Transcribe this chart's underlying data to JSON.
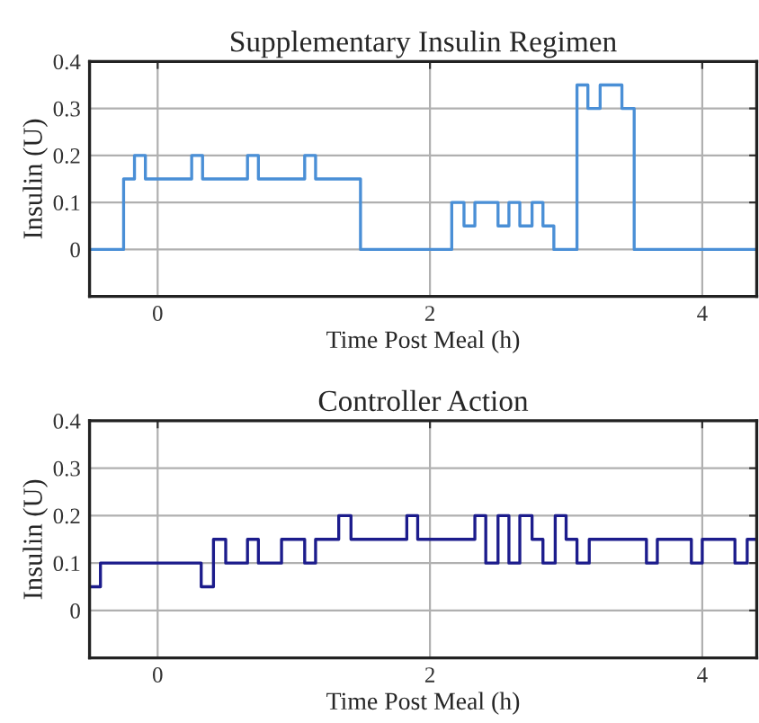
{
  "chart_data": [
    {
      "type": "step",
      "title": "Supplementary Insulin Regimen",
      "xlabel": "Time Post Meal (h)",
      "ylabel": "Insulin (U)",
      "x": [
        -0.5,
        -0.25,
        -0.17,
        -0.09,
        0.25,
        0.33,
        0.66,
        0.74,
        1.08,
        1.16,
        1.49,
        2.16,
        2.25,
        2.33,
        2.5,
        2.58,
        2.66,
        2.75,
        2.83,
        2.91,
        3.08,
        3.16,
        3.25,
        3.41,
        3.5,
        4.4
      ],
      "series": [
        {
          "color": "#4a8fd6",
          "values": [
            0,
            0.15,
            0.2,
            0.15,
            0.2,
            0.15,
            0.2,
            0.15,
            0.2,
            0.15,
            0,
            0.1,
            0.05,
            0.1,
            0.05,
            0.1,
            0.05,
            0.1,
            0.05,
            0,
            0.35,
            0.3,
            0.35,
            0.3,
            0,
            0
          ]
        }
      ],
      "xlim": [
        -0.5,
        4.4
      ],
      "ylim": [
        -0.1,
        0.4
      ],
      "xticks": [
        0,
        2,
        4
      ],
      "yticks": [
        0,
        0.1,
        0.2,
        0.3,
        0.4
      ],
      "grid": true
    },
    {
      "type": "step",
      "title": "Controller Action",
      "xlabel": "Time Post Meal (h)",
      "ylabel": "Insulin (U)",
      "x": [
        -0.5,
        -0.42,
        0.32,
        0.41,
        0.5,
        0.66,
        0.74,
        0.91,
        1.08,
        1.16,
        1.33,
        1.42,
        1.83,
        1.91,
        2.33,
        2.41,
        2.5,
        2.58,
        2.66,
        2.75,
        2.83,
        2.92,
        3.0,
        3.08,
        3.17,
        3.59,
        3.67,
        3.92,
        4.0,
        4.24,
        4.33,
        4.4
      ],
      "series": [
        {
          "color": "#1c1c8c",
          "values": [
            0.05,
            0.1,
            0.05,
            0.15,
            0.1,
            0.15,
            0.1,
            0.15,
            0.1,
            0.15,
            0.2,
            0.15,
            0.2,
            0.15,
            0.2,
            0.1,
            0.2,
            0.1,
            0.2,
            0.15,
            0.1,
            0.2,
            0.15,
            0.1,
            0.15,
            0.1,
            0.15,
            0.1,
            0.15,
            0.1,
            0.15,
            0.15
          ]
        }
      ],
      "xlim": [
        -0.5,
        4.4
      ],
      "ylim": [
        -0.1,
        0.4
      ],
      "xticks": [
        0,
        2,
        4
      ],
      "yticks": [
        0,
        0.1,
        0.2,
        0.3,
        0.4
      ],
      "grid": true
    }
  ]
}
